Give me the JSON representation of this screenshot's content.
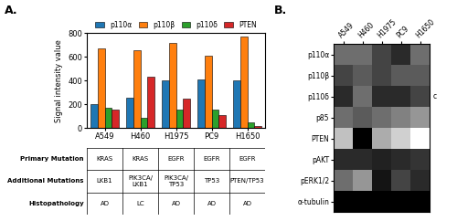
{
  "chart_data": [
    {
      "type": "bar",
      "title": "A.",
      "categories": [
        "A549",
        "H460",
        "H1975",
        "PC9",
        "H1650"
      ],
      "series": [
        {
          "name": "p110α",
          "values": [
            200,
            260,
            400,
            410,
            400
          ]
        },
        {
          "name": "p110β",
          "values": [
            670,
            660,
            720,
            610,
            770
          ]
        },
        {
          "name": "p110δ",
          "values": [
            175,
            90,
            160,
            160,
            50
          ]
        },
        {
          "name": "PTEN",
          "values": [
            155,
            435,
            250,
            110,
            15
          ]
        }
      ],
      "ylabel": "Signal intensity value",
      "ylim": [
        0,
        800
      ],
      "yticks": [
        0,
        200,
        400,
        600,
        800
      ],
      "legend": "upper center",
      "grid": false
    },
    {
      "type": "table",
      "row_labels": [
        "Primary Mutation",
        "Additional Mutations",
        "Histopathology"
      ],
      "rows": [
        [
          "KRAS",
          "KRAS",
          "EGFR",
          "EGFR",
          "EGFR"
        ],
        [
          "LKB1",
          "PIK3CA/\nLKB1",
          "PIK3CA/\nTP53",
          "TP53",
          "PTEN/TP53"
        ],
        [
          "AD",
          "LC",
          "AD",
          "AD",
          "AD"
        ]
      ]
    },
    {
      "type": "heatmap",
      "title": "B.",
      "categories": [
        "A549",
        "H460",
        "H1975",
        "PC9",
        "H1650"
      ],
      "row_labels": [
        "p110α",
        "p110β",
        "p110δ",
        "p85",
        "PTEN",
        "pAKT",
        "pERK1/2",
        "α-tubulin"
      ],
      "cells": [
        [
          0.55,
          0.55,
          0.65,
          0.7,
          0.55
        ],
        [
          0.65,
          0.6,
          0.65,
          0.6,
          0.6
        ],
        [
          0.7,
          0.55,
          0.7,
          0.7,
          0.65
        ],
        [
          0.55,
          0.6,
          0.55,
          0.5,
          0.45
        ],
        [
          0.35,
          0.8,
          0.4,
          0.3,
          0.1
        ],
        [
          0.7,
          0.7,
          0.72,
          0.7,
          0.68
        ],
        [
          0.55,
          0.45,
          0.75,
          0.65,
          0.7
        ],
        [
          0.8,
          0.8,
          0.8,
          0.8,
          0.8
        ]
      ],
      "annotations": [
        {
          "text": "c",
          "row": "p110δ"
        }
      ]
    }
  ]
}
